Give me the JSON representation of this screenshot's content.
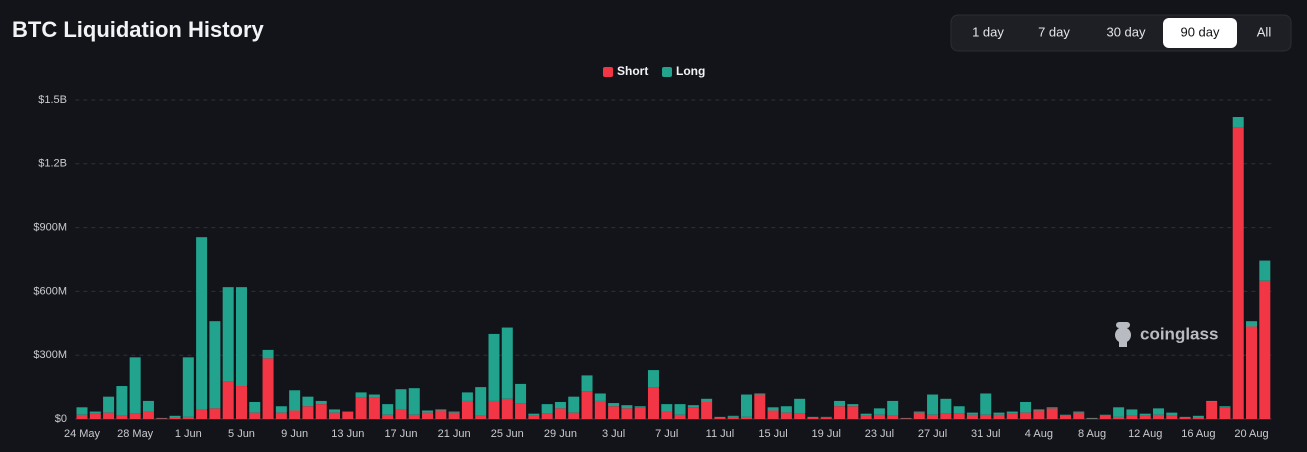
{
  "header": {
    "title": "BTC Liquidation History",
    "buttons": [
      "1 day",
      "7 day",
      "30 day",
      "90 day",
      "All"
    ],
    "selected": 3
  },
  "watermark": "coinglass",
  "chart_data": {
    "type": "bar",
    "stacked": true,
    "grid": true,
    "categories": [
      "24 May",
      null,
      null,
      null,
      "28 May",
      null,
      null,
      null,
      "1 Jun",
      null,
      null,
      null,
      "5 Jun",
      null,
      null,
      null,
      "9 Jun",
      null,
      null,
      null,
      "13 Jun",
      null,
      null,
      null,
      "17 Jun",
      null,
      null,
      null,
      "21 Jun",
      null,
      null,
      null,
      "25 Jun",
      null,
      null,
      null,
      "29 Jun",
      null,
      null,
      null,
      "3 Jul",
      null,
      null,
      null,
      "7 Jul",
      null,
      null,
      null,
      "11 Jul",
      null,
      null,
      null,
      "15 Jul",
      null,
      null,
      null,
      "19 Jul",
      null,
      null,
      null,
      "23 Jul",
      null,
      null,
      null,
      "27 Jul",
      null,
      null,
      null,
      "31 Jul",
      null,
      null,
      null,
      "4 Aug",
      null,
      null,
      null,
      "8 Aug",
      null,
      null,
      null,
      "12 Aug",
      null,
      null,
      null,
      "16 Aug",
      null,
      null,
      null,
      "20 Aug",
      null
    ],
    "series": [
      {
        "name": "Short",
        "color": "#f23645",
        "values": [
          20,
          25,
          30,
          15,
          25,
          35,
          3,
          5,
          10,
          45,
          50,
          175,
          155,
          30,
          285,
          30,
          40,
          60,
          70,
          30,
          35,
          100,
          100,
          20,
          45,
          20,
          30,
          40,
          30,
          85,
          15,
          85,
          95,
          75,
          15,
          25,
          50,
          30,
          130,
          85,
          60,
          50,
          55,
          150,
          35,
          20,
          55,
          80,
          5,
          10,
          10,
          115,
          40,
          30,
          25,
          5,
          8,
          60,
          60,
          15,
          20,
          15,
          3,
          30,
          20,
          25,
          25,
          20,
          20,
          20,
          25,
          30,
          40,
          50,
          15,
          30,
          2,
          15,
          10,
          15,
          15,
          20,
          15,
          5,
          5,
          80,
          55,
          1370,
          435,
          650
        ]
      },
      {
        "name": "Long",
        "color": "#22a38e",
        "values": [
          35,
          10,
          75,
          140,
          265,
          50,
          2,
          10,
          280,
          810,
          410,
          445,
          465,
          50,
          40,
          30,
          95,
          45,
          15,
          15,
          0,
          25,
          15,
          50,
          95,
          125,
          10,
          5,
          5,
          40,
          135,
          315,
          335,
          90,
          10,
          45,
          30,
          75,
          75,
          35,
          15,
          15,
          5,
          80,
          35,
          50,
          10,
          15,
          5,
          5,
          105,
          5,
          15,
          30,
          70,
          5,
          2,
          25,
          10,
          10,
          30,
          70,
          2,
          5,
          95,
          70,
          35,
          10,
          100,
          10,
          10,
          50,
          5,
          5,
          5,
          5,
          3,
          5,
          45,
          30,
          10,
          30,
          15,
          5,
          10,
          5,
          5,
          50,
          25,
          95
        ]
      }
    ],
    "ylim": [
      0,
      1500
    ],
    "yticks": [
      {
        "value": 0,
        "label": "$0"
      },
      {
        "value": 300,
        "label": "$300M"
      },
      {
        "value": 600,
        "label": "$600M"
      },
      {
        "value": 900,
        "label": "$900M"
      },
      {
        "value": 1200,
        "label": "$1.2B"
      },
      {
        "value": 1500,
        "label": "$1.5B"
      }
    ]
  }
}
